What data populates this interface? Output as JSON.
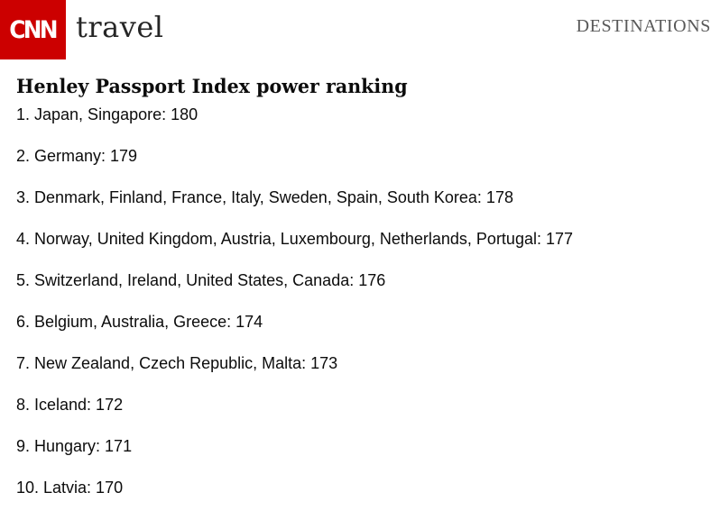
{
  "header": {
    "logo_text": "CNN",
    "section_name": "travel",
    "nav_link": "DESTINATIONS",
    "brand_color": "#cc0000"
  },
  "article": {
    "title": "Henley Passport Index power ranking",
    "items": [
      "1. Japan, Singapore: 180",
      "2. Germany: 179",
      "3. Denmark, Finland, France, Italy, Sweden, Spain, South Korea: 178",
      "4. Norway, United Kingdom, Austria, Luxembourg, Netherlands, Portugal: 177",
      "5. Switzerland, Ireland, United States, Canada: 176",
      "6. Belgium, Australia, Greece: 174",
      "7. New Zealand, Czech Republic, Malta: 173",
      "8. Iceland: 172",
      "9. Hungary: 171",
      "10. Latvia: 170"
    ]
  }
}
